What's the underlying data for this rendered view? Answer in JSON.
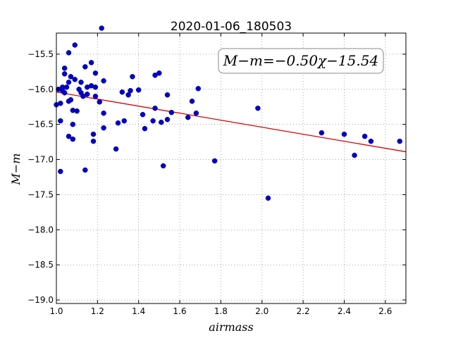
{
  "chart_data": {
    "type": "scatter",
    "title": "2020-01-06_180503",
    "xlabel": "airmass",
    "ylabel": "M−m",
    "xlim": [
      1.0,
      2.7
    ],
    "ylim": [
      -19.05,
      -15.2
    ],
    "y_inverted": true,
    "x_ticks": [
      1.0,
      1.2,
      1.4,
      1.6,
      1.8,
      2.0,
      2.2,
      2.4,
      2.6
    ],
    "x_tick_labels": [
      "1.0",
      "1.2",
      "1.4",
      "1.6",
      "1.8",
      "2.0",
      "2.2",
      "2.4",
      "2.6"
    ],
    "y_ticks": [
      -15.5,
      -16.0,
      -16.5,
      -17.0,
      -17.5,
      -18.0,
      -18.5,
      -19.0
    ],
    "y_tick_labels": [
      "−15.5",
      "−16.0",
      "−16.5",
      "−17.0",
      "−17.5",
      "−18.0",
      "−18.5",
      "−19.0"
    ],
    "grid": true,
    "fit": {
      "slope": -0.5,
      "intercept": -15.54,
      "label": "M−m=−0.50χ−15.54"
    },
    "colors": {
      "points": "#0000cc",
      "fit_line": "#dd0000"
    },
    "points": [
      {
        "x": 1.0,
        "y": -16.22
      },
      {
        "x": 1.01,
        "y": -16.0
      },
      {
        "x": 1.02,
        "y": -16.2
      },
      {
        "x": 1.02,
        "y": -16.45
      },
      {
        "x": 1.02,
        "y": -17.17
      },
      {
        "x": 1.03,
        "y": -15.97
      },
      {
        "x": 1.03,
        "y": -16.02
      },
      {
        "x": 1.04,
        "y": -16.05
      },
      {
        "x": 1.04,
        "y": -15.78
      },
      {
        "x": 1.04,
        "y": -15.7
      },
      {
        "x": 1.05,
        "y": -15.97
      },
      {
        "x": 1.06,
        "y": -15.48
      },
      {
        "x": 1.06,
        "y": -15.9
      },
      {
        "x": 1.06,
        "y": -16.17
      },
      {
        "x": 1.06,
        "y": -16.67
      },
      {
        "x": 1.07,
        "y": -15.82
      },
      {
        "x": 1.07,
        "y": -16.15
      },
      {
        "x": 1.08,
        "y": -16.3
      },
      {
        "x": 1.08,
        "y": -16.5
      },
      {
        "x": 1.08,
        "y": -16.71
      },
      {
        "x": 1.09,
        "y": -15.37
      },
      {
        "x": 1.09,
        "y": -15.86
      },
      {
        "x": 1.1,
        "y": -16.31
      },
      {
        "x": 1.11,
        "y": -16.0
      },
      {
        "x": 1.12,
        "y": -16.05
      },
      {
        "x": 1.12,
        "y": -15.9
      },
      {
        "x": 1.13,
        "y": -16.1
      },
      {
        "x": 1.14,
        "y": -15.68
      },
      {
        "x": 1.14,
        "y": -17.15
      },
      {
        "x": 1.15,
        "y": -16.07
      },
      {
        "x": 1.15,
        "y": -15.97
      },
      {
        "x": 1.17,
        "y": -15.62
      },
      {
        "x": 1.17,
        "y": -15.95
      },
      {
        "x": 1.18,
        "y": -16.64
      },
      {
        "x": 1.18,
        "y": -16.74
      },
      {
        "x": 1.19,
        "y": -15.77
      },
      {
        "x": 1.19,
        "y": -16.1
      },
      {
        "x": 1.19,
        "y": -15.97
      },
      {
        "x": 1.21,
        "y": -16.18
      },
      {
        "x": 1.22,
        "y": -15.13
      },
      {
        "x": 1.23,
        "y": -15.88
      },
      {
        "x": 1.23,
        "y": -16.34
      },
      {
        "x": 1.23,
        "y": -16.55
      },
      {
        "x": 1.29,
        "y": -16.85
      },
      {
        "x": 1.3,
        "y": -16.48
      },
      {
        "x": 1.32,
        "y": -16.04
      },
      {
        "x": 1.33,
        "y": -16.45
      },
      {
        "x": 1.35,
        "y": -16.08
      },
      {
        "x": 1.36,
        "y": -16.02
      },
      {
        "x": 1.37,
        "y": -15.82
      },
      {
        "x": 1.4,
        "y": -16.01
      },
      {
        "x": 1.42,
        "y": -16.36
      },
      {
        "x": 1.43,
        "y": -16.56
      },
      {
        "x": 1.47,
        "y": -16.45
      },
      {
        "x": 1.48,
        "y": -16.27
      },
      {
        "x": 1.48,
        "y": -15.8
      },
      {
        "x": 1.5,
        "y": -15.77
      },
      {
        "x": 1.51,
        "y": -16.47
      },
      {
        "x": 1.52,
        "y": -17.09
      },
      {
        "x": 1.54,
        "y": -16.43
      },
      {
        "x": 1.54,
        "y": -16.08
      },
      {
        "x": 1.56,
        "y": -16.33
      },
      {
        "x": 1.64,
        "y": -16.4
      },
      {
        "x": 1.66,
        "y": -16.17
      },
      {
        "x": 1.68,
        "y": -16.34
      },
      {
        "x": 1.69,
        "y": -15.99
      },
      {
        "x": 1.77,
        "y": -17.02
      },
      {
        "x": 1.98,
        "y": -16.27
      },
      {
        "x": 2.03,
        "y": -17.55
      },
      {
        "x": 2.29,
        "y": -16.62
      },
      {
        "x": 2.4,
        "y": -16.64
      },
      {
        "x": 2.45,
        "y": -16.94
      },
      {
        "x": 2.5,
        "y": -16.67
      },
      {
        "x": 2.53,
        "y": -16.74
      },
      {
        "x": 2.67,
        "y": -16.74
      }
    ]
  }
}
